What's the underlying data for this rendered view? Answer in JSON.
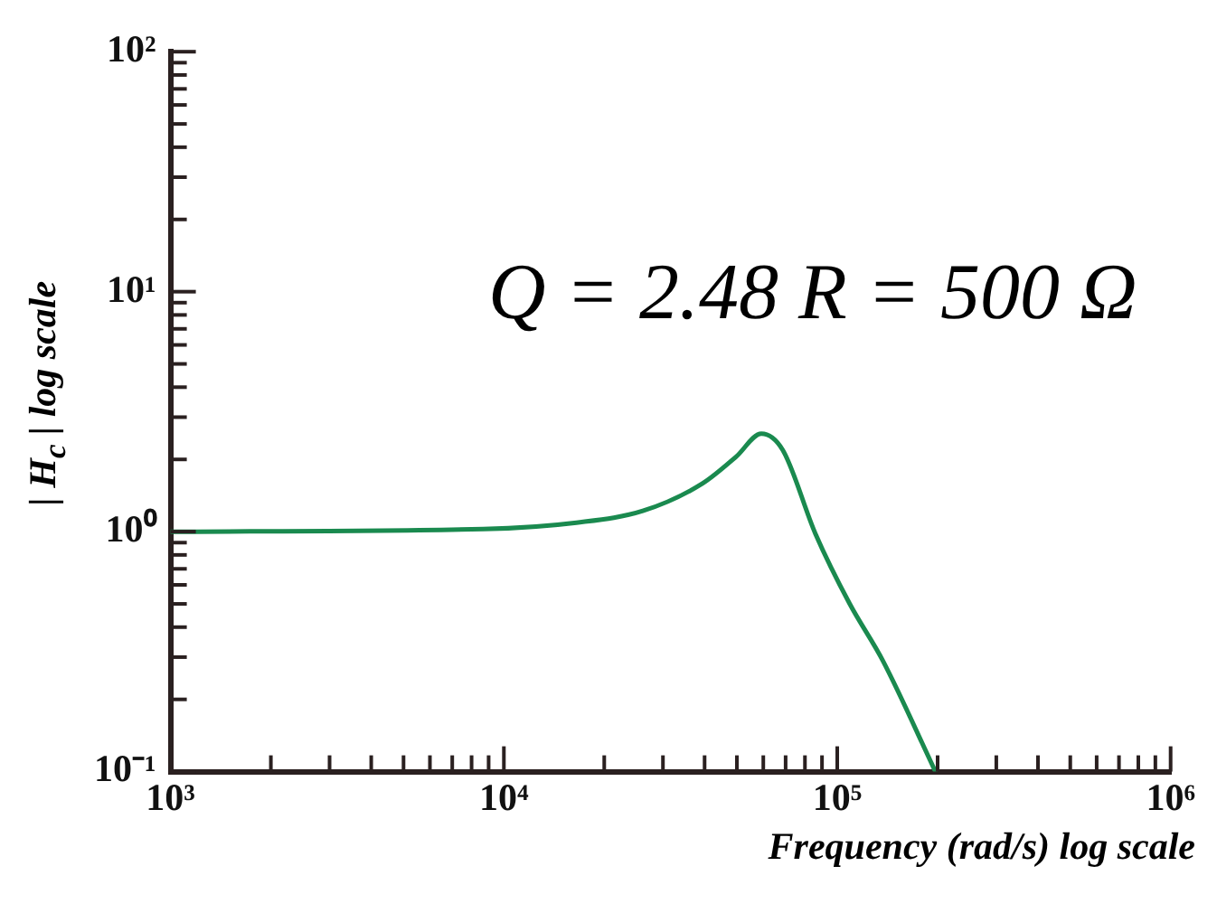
{
  "chart_data": {
    "type": "line",
    "xlabel": "Frequency (rad/s) log scale",
    "ylabel": "| H$_{c}$ | log scale",
    "annotations": [
      "Q = 2.48  R = 500 Ω"
    ],
    "x": [
      1000,
      8670,
      16500,
      26100,
      39500,
      49700,
      59200,
      68600,
      86000,
      109000,
      137000,
      197000
    ],
    "series": [
      {
        "color": "#1a8a4f",
        "values": [
          1.0,
          1.025,
          1.09,
          1.22,
          1.59,
          2.05,
          2.56,
          2.19,
          0.98,
          0.5,
          0.29,
          0.1
        ]
      }
    ],
    "log": "xy",
    "grid": false,
    "legend": false,
    "marker": "none",
    "line_style": "solid",
    "xlim": [
      1000,
      1000000
    ],
    "ylim": [
      0.1,
      100
    ],
    "xticks": [
      {
        "value": 1000,
        "label": "10³"
      },
      {
        "value": 2000,
        "label": null
      },
      {
        "value": 3000,
        "label": null
      },
      {
        "value": 4000,
        "label": null
      },
      {
        "value": 5000,
        "label": null
      },
      {
        "value": 6000,
        "label": null
      },
      {
        "value": 7000,
        "label": null
      },
      {
        "value": 8000,
        "label": null
      },
      {
        "value": 9000,
        "label": null
      },
      {
        "value": 10000,
        "label": "10⁴"
      },
      {
        "value": 20000,
        "label": null
      },
      {
        "value": 30000,
        "label": null
      },
      {
        "value": 40000,
        "label": null
      },
      {
        "value": 50000,
        "label": null
      },
      {
        "value": 60000,
        "label": null
      },
      {
        "value": 70000,
        "label": null
      },
      {
        "value": 80000,
        "label": null
      },
      {
        "value": 90000,
        "label": null
      },
      {
        "value": 100000,
        "label": "10⁵"
      },
      {
        "value": 200000,
        "label": null
      },
      {
        "value": 300000,
        "label": null
      },
      {
        "value": 400000,
        "label": null
      },
      {
        "value": 500000,
        "label": null
      },
      {
        "value": 600000,
        "label": null
      },
      {
        "value": 700000,
        "label": null
      },
      {
        "value": 800000,
        "label": null
      },
      {
        "value": 900000,
        "label": null
      },
      {
        "value": 1000000,
        "label": "10⁶"
      }
    ],
    "yticks": [
      {
        "value": 0.1,
        "label": "10⁻¹"
      },
      {
        "value": 0.2,
        "label": null
      },
      {
        "value": 0.3,
        "label": null
      },
      {
        "value": 0.4,
        "label": null
      },
      {
        "value": 0.5,
        "label": null
      },
      {
        "value": 0.6,
        "label": null
      },
      {
        "value": 0.7,
        "label": null
      },
      {
        "value": 0.8,
        "label": null
      },
      {
        "value": 0.9,
        "label": null
      },
      {
        "value": 1,
        "label": "10⁰"
      },
      {
        "value": 2,
        "label": null
      },
      {
        "value": 3,
        "label": null
      },
      {
        "value": 4,
        "label": null
      },
      {
        "value": 5,
        "label": null
      },
      {
        "value": 6,
        "label": null
      },
      {
        "value": 7,
        "label": null
      },
      {
        "value": 8,
        "label": null
      },
      {
        "value": 9,
        "label": null
      },
      {
        "value": 10,
        "label": "10¹"
      },
      {
        "value": 20,
        "label": null
      },
      {
        "value": 30,
        "label": null
      },
      {
        "value": 40,
        "label": null
      },
      {
        "value": 50,
        "label": null
      },
      {
        "value": 60,
        "label": null
      },
      {
        "value": 70,
        "label": null
      },
      {
        "value": 80,
        "label": null
      },
      {
        "value": 90,
        "label": null
      },
      {
        "value": 100,
        "label": "10²"
      }
    ]
  }
}
